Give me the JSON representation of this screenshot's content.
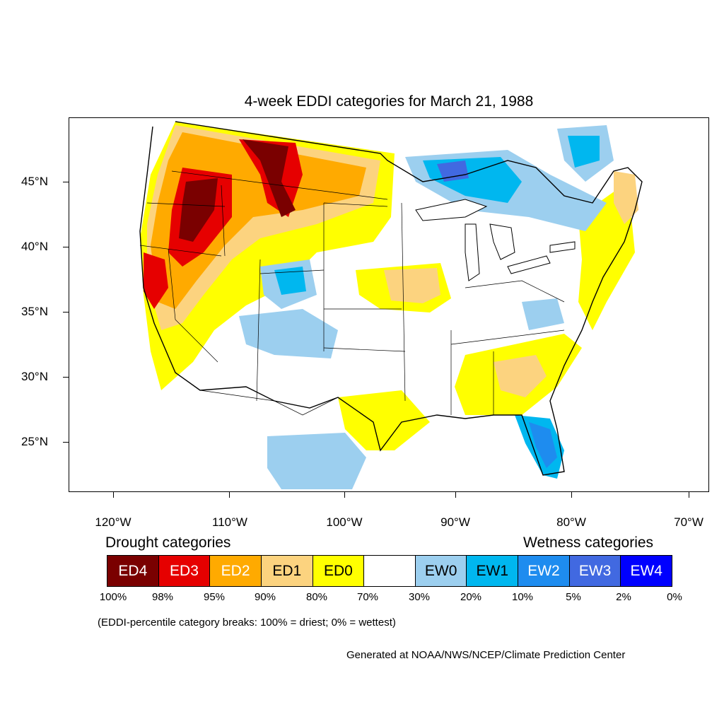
{
  "title": "4-week EDDI categories for March 21, 1988",
  "y_axis_labels": [
    "45°N",
    "40°N",
    "35°N",
    "30°N",
    "25°N"
  ],
  "x_axis_labels": [
    "120°W",
    "110°W",
    "100°W",
    "90°W",
    "80°W",
    "70°W"
  ],
  "legend": {
    "drought_heading": "Drought categories",
    "wetness_heading": "Wetness categories",
    "categories": [
      {
        "label": "ED4",
        "color": "#7a0000",
        "text_color": "#ffffff"
      },
      {
        "label": "ED3",
        "color": "#e60000",
        "text_color": "#ffffff"
      },
      {
        "label": "ED2",
        "color": "#ffaa00",
        "text_color": "#ffffff"
      },
      {
        "label": "ED1",
        "color": "#fcd37f",
        "text_color": "#000000"
      },
      {
        "label": "ED0",
        "color": "#ffff00",
        "text_color": "#000000"
      },
      {
        "label": "",
        "color": "#ffffff",
        "text_color": "#000000"
      },
      {
        "label": "EW0",
        "color": "#9ccfef",
        "text_color": "#000000"
      },
      {
        "label": "EW1",
        "color": "#00b7ef",
        "text_color": "#000000"
      },
      {
        "label": "EW2",
        "color": "#1e8cef",
        "text_color": "#ffffff"
      },
      {
        "label": "EW3",
        "color": "#4169e1",
        "text_color": "#ffffff"
      },
      {
        "label": "EW4",
        "color": "#0000ff",
        "text_color": "#ffffff"
      }
    ],
    "breaks": [
      "100%",
      "98%",
      "95%",
      "90%",
      "80%",
      "70%",
      "30%",
      "20%",
      "10%",
      "5%",
      "2%",
      "0%"
    ]
  },
  "note": "(EDDI-percentile category breaks: 100% = driest; 0% = wettest)",
  "credit": "Generated at NOAA/NWS/NCEP/Climate Prediction Center"
}
